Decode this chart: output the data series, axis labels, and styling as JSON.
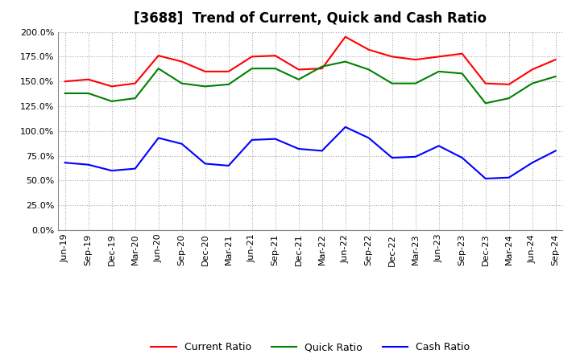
{
  "title": "[3688]  Trend of Current, Quick and Cash Ratio",
  "labels": [
    "Jun-19",
    "Sep-19",
    "Dec-19",
    "Mar-20",
    "Jun-20",
    "Sep-20",
    "Dec-20",
    "Mar-21",
    "Jun-21",
    "Sep-21",
    "Dec-21",
    "Mar-22",
    "Jun-22",
    "Sep-22",
    "Dec-22",
    "Mar-23",
    "Jun-23",
    "Sep-23",
    "Dec-23",
    "Mar-24",
    "Jun-24",
    "Sep-24"
  ],
  "current_ratio": [
    150.0,
    152.0,
    145.0,
    148.0,
    176.0,
    170.0,
    160.0,
    160.0,
    175.0,
    176.0,
    162.0,
    163.0,
    195.0,
    182.0,
    175.0,
    172.0,
    175.0,
    178.0,
    148.0,
    147.0,
    162.0,
    172.0
  ],
  "quick_ratio": [
    138.0,
    138.0,
    130.0,
    133.0,
    163.0,
    148.0,
    145.0,
    147.0,
    163.0,
    163.0,
    152.0,
    165.0,
    170.0,
    162.0,
    148.0,
    148.0,
    160.0,
    158.0,
    128.0,
    133.0,
    148.0,
    155.0
  ],
  "cash_ratio": [
    68.0,
    66.0,
    60.0,
    62.0,
    93.0,
    87.0,
    67.0,
    65.0,
    91.0,
    92.0,
    82.0,
    80.0,
    104.0,
    93.0,
    73.0,
    74.0,
    85.0,
    73.0,
    52.0,
    53.0,
    68.0,
    80.0
  ],
  "current_color": "#FF0000",
  "quick_color": "#008000",
  "cash_color": "#0000FF",
  "ylim": [
    0,
    200
  ],
  "yticks": [
    0,
    25,
    50,
    75,
    100,
    125,
    150,
    175,
    200
  ],
  "background_color": "#FFFFFF",
  "plot_bg_color": "#FFFFFF",
  "grid_color": "#AAAAAA",
  "title_fontsize": 12,
  "legend_fontsize": 9,
  "tick_fontsize": 8,
  "line_width": 1.5
}
